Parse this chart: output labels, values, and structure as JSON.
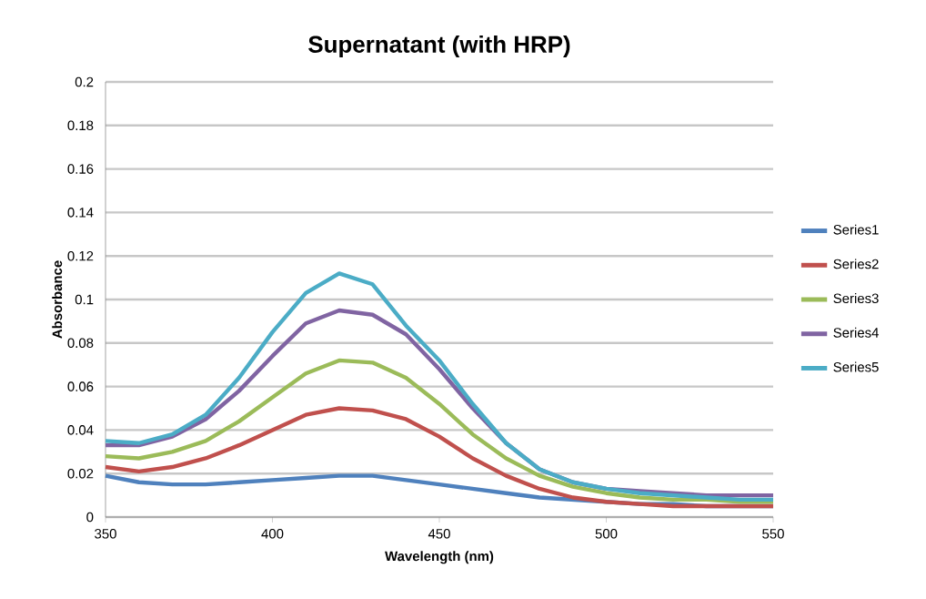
{
  "chart_data": {
    "type": "line",
    "title": "Supernatant (with HRP)",
    "xlabel": "Wavelength (nm)",
    "ylabel": "Absorbance",
    "x": [
      350,
      360,
      370,
      380,
      390,
      400,
      410,
      420,
      430,
      440,
      450,
      460,
      470,
      480,
      490,
      500,
      510,
      520,
      530,
      540,
      550
    ],
    "series": [
      {
        "name": "Series1",
        "color": "#4f81bd",
        "values": [
          0.019,
          0.016,
          0.015,
          0.015,
          0.016,
          0.017,
          0.018,
          0.019,
          0.019,
          0.017,
          0.015,
          0.013,
          0.011,
          0.009,
          0.008,
          0.007,
          0.006,
          0.006,
          0.005,
          0.005,
          0.005
        ]
      },
      {
        "name": "Series2",
        "color": "#c0504d",
        "values": [
          0.023,
          0.021,
          0.023,
          0.027,
          0.033,
          0.04,
          0.047,
          0.05,
          0.049,
          0.045,
          0.037,
          0.027,
          0.019,
          0.013,
          0.009,
          0.007,
          0.006,
          0.005,
          0.005,
          0.005,
          0.005
        ]
      },
      {
        "name": "Series3",
        "color": "#9bbb59",
        "values": [
          0.028,
          0.027,
          0.03,
          0.035,
          0.044,
          0.055,
          0.066,
          0.072,
          0.071,
          0.064,
          0.052,
          0.038,
          0.027,
          0.019,
          0.014,
          0.011,
          0.009,
          0.008,
          0.008,
          0.007,
          0.007
        ]
      },
      {
        "name": "Series4",
        "color": "#8064a2",
        "values": [
          0.033,
          0.033,
          0.037,
          0.045,
          0.058,
          0.074,
          0.089,
          0.095,
          0.093,
          0.084,
          0.068,
          0.05,
          0.034,
          0.022,
          0.016,
          0.013,
          0.012,
          0.011,
          0.01,
          0.01,
          0.01
        ]
      },
      {
        "name": "Series5",
        "color": "#4bacc6",
        "values": [
          0.035,
          0.034,
          0.038,
          0.047,
          0.064,
          0.085,
          0.103,
          0.112,
          0.107,
          0.088,
          0.072,
          0.052,
          0.034,
          0.022,
          0.016,
          0.013,
          0.011,
          0.01,
          0.009,
          0.008,
          0.008
        ]
      }
    ],
    "xlim": [
      350,
      550
    ],
    "xticks": [
      350,
      400,
      450,
      500,
      550
    ],
    "ylim": [
      0,
      0.2
    ],
    "yticks": [
      0,
      0.02,
      0.04,
      0.06,
      0.08,
      0.1,
      0.12,
      0.14,
      0.16,
      0.18,
      0.2
    ],
    "grid": "y",
    "legend": "right",
    "marker": "none",
    "line_style": "solid"
  }
}
